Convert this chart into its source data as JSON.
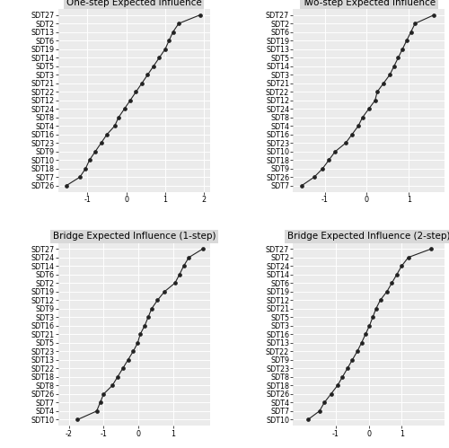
{
  "panel1": {
    "title": "One-step Expected Influence",
    "labels": [
      "SDT27",
      "SDT2",
      "SDT13",
      "SDT6",
      "SDT19",
      "SDT14",
      "SDT5",
      "SDT3",
      "SDT21",
      "SDT22",
      "SDT12",
      "SDT24",
      "SDT8",
      "SDT4",
      "SDT16",
      "SDT23",
      "SDT9",
      "SDT10",
      "SDT18",
      "SDT7",
      "SDT26"
    ],
    "values": [
      1.9,
      1.35,
      1.2,
      1.1,
      1.0,
      0.85,
      0.7,
      0.55,
      0.4,
      0.25,
      0.1,
      -0.05,
      -0.2,
      -0.3,
      -0.5,
      -0.65,
      -0.8,
      -0.95,
      -1.05,
      -1.2,
      -1.55
    ],
    "xlim": [
      -1.75,
      2.15
    ],
    "xticks": [
      -1,
      0,
      1,
      2
    ]
  },
  "panel2": {
    "title": "Two-step Expected Influence",
    "labels": [
      "SDT27",
      "SDT2",
      "SDT6",
      "SDT19",
      "SDT13",
      "SDT5",
      "SDT14",
      "SDT3",
      "SDT21",
      "SDT22",
      "SDT12",
      "SDT24",
      "SDT8",
      "SDT4",
      "SDT16",
      "SDT23",
      "SDT10",
      "SDT18",
      "SDT9",
      "SDT26",
      "SDT7"
    ],
    "values": [
      1.6,
      1.15,
      1.05,
      0.95,
      0.85,
      0.75,
      0.65,
      0.55,
      0.4,
      0.25,
      0.2,
      0.05,
      -0.1,
      -0.2,
      -0.35,
      -0.5,
      -0.75,
      -0.9,
      -1.05,
      -1.25,
      -1.55
    ],
    "xlim": [
      -1.75,
      1.85
    ],
    "xticks": [
      -1,
      0,
      1
    ]
  },
  "panel3": {
    "title": "Bridge Expected Influence (1-step)",
    "labels": [
      "SDT27",
      "SDT24",
      "SDT14",
      "SDT6",
      "SDT2",
      "SDT19",
      "SDT12",
      "SDT9",
      "SDT3",
      "SDT16",
      "SDT21",
      "SDT5",
      "SDT23",
      "SDT13",
      "SDT22",
      "SDT18",
      "SDT8",
      "SDT26",
      "SDT7",
      "SDT4",
      "SDT10"
    ],
    "values": [
      1.85,
      1.45,
      1.3,
      1.18,
      1.05,
      0.75,
      0.55,
      0.38,
      0.28,
      0.18,
      0.05,
      -0.02,
      -0.15,
      -0.3,
      -0.45,
      -0.6,
      -0.75,
      -1.0,
      -1.1,
      -1.2,
      -1.75
    ],
    "xlim": [
      -2.3,
      2.05
    ],
    "xticks": [
      -2,
      -1,
      0,
      1
    ]
  },
  "panel4": {
    "title": "Bridge Expected Influence (2-step)",
    "labels": [
      "SDT27",
      "SDT2",
      "SDT24",
      "SDT14",
      "SDT6",
      "SDT19",
      "SDT12",
      "SDT21",
      "SDT5",
      "SDT3",
      "SDT16",
      "SDT13",
      "SDT22",
      "SDT9",
      "SDT23",
      "SDT8",
      "SDT18",
      "SDT26",
      "SDT4",
      "SDT7",
      "SDT10"
    ],
    "values": [
      1.9,
      1.2,
      1.0,
      0.85,
      0.7,
      0.55,
      0.35,
      0.22,
      0.12,
      0.02,
      -0.1,
      -0.22,
      -0.35,
      -0.5,
      -0.65,
      -0.8,
      -0.95,
      -1.15,
      -1.35,
      -1.5,
      -1.85
    ],
    "xlim": [
      -2.3,
      2.3
    ],
    "xticks": [
      -1,
      0,
      1
    ]
  },
  "fig_bg": "#ffffff",
  "plot_bg": "#ebebeb",
  "line_color": "#222222",
  "marker_color": "#222222",
  "grid_color": "#ffffff",
  "title_bg": "#d9d9d9",
  "label_fontsize": 5.8,
  "title_fontsize": 7.5
}
